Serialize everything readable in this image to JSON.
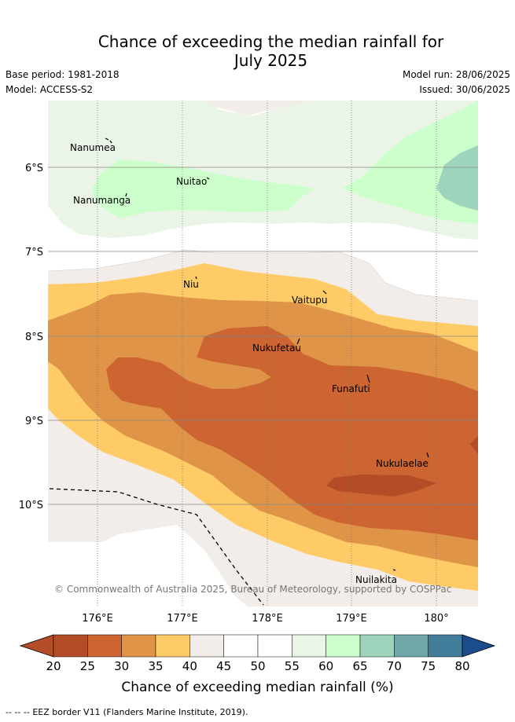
{
  "title_line1": "Chance of exceeding the median rainfall for",
  "title_line2": "July 2025",
  "base_period": "Base period: 1981-2018",
  "model": "Model: ACCESS-S2",
  "model_run": "Model run: 28/06/2025",
  "issued": "Issued: 30/06/2025",
  "lat_labels": [
    "6°S",
    "7°S",
    "8°S",
    "9°S",
    "10°S"
  ],
  "lon_labels": [
    "176°E",
    "177°E",
    "178°E",
    "179°E",
    "180°"
  ],
  "islands": [
    "Nanumea",
    "Nuitao",
    "Nanumanga",
    "Niu",
    "Vaitupu",
    "Nukufetau",
    "Funafuti",
    "Nukulaelae",
    "Nuilakita"
  ],
  "copyright": "© Commonwealth of Australia 2025, Bureau of Meteorology, supported by COSPPac",
  "colorbar": {
    "ticks": [
      "20",
      "25",
      "30",
      "35",
      "40",
      "45",
      "50",
      "55",
      "60",
      "65",
      "70",
      "75",
      "80"
    ],
    "label": "Chance of exceeding median rainfall (%)",
    "colors": [
      "#b34c27",
      "#cc6532",
      "#e09447",
      "#fecb66",
      "#f2ede8",
      "#ffffff",
      "#ffffff",
      "#eaf5e7",
      "#ccffcc",
      "#9ed4bc",
      "#6ea7a5",
      "#427d9b",
      "#1b4d8d"
    ]
  },
  "eez_legend": "EEZ border V11 (Flanders Marine Institute, 2019)."
}
